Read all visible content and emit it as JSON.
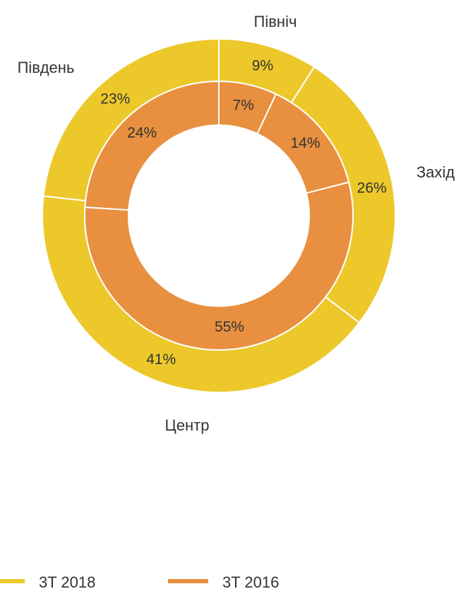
{
  "chart_data": {
    "type": "donut",
    "categories": [
      "Північ",
      "Захід",
      "Центр",
      "Південь"
    ],
    "series": [
      {
        "name": "3T 2018",
        "color": "#ecc82a",
        "values": [
          9,
          26,
          41,
          23
        ],
        "value_labels": [
          "9%",
          "26%",
          "41%",
          "23%"
        ]
      },
      {
        "name": "3T 2016",
        "color": "#e8903f",
        "values": [
          7,
          14,
          55,
          24
        ],
        "value_labels": [
          "7%",
          "14%",
          "55%",
          "24%"
        ]
      }
    ]
  }
}
